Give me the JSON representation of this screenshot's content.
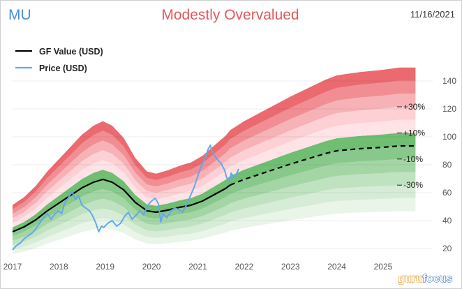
{
  "header": {
    "ticker": "MU",
    "valuation": "Modestly Overvalued",
    "date": "11/16/2021"
  },
  "colors": {
    "ticker": "#4a90d9",
    "valuation": "#e05a5a",
    "gf_value_line": "#000000",
    "price_line": "#62a8ea",
    "bands_over": [
      "#ffe3e6",
      "#fcd0d4",
      "#f7b2b7",
      "#f18e94",
      "#ea6a6f"
    ],
    "bands_under": [
      "#eaf5ea",
      "#d6ecd6",
      "#bfe2c0",
      "#a4d5a5",
      "#88c98b",
      "#6fbe72"
    ]
  },
  "chart_data": {
    "type": "line",
    "title": "Modestly Overvalued",
    "xlabel": "",
    "ylabel": "",
    "xlim": [
      2017.0,
      2025.95
    ],
    "ylim": [
      15,
      150
    ],
    "x_ticks": [
      "2017",
      "2018",
      "2019",
      "2020",
      "2021",
      "2022",
      "2023",
      "2024",
      "2025"
    ],
    "y_ticks": [
      20,
      40,
      60,
      80,
      100,
      120,
      140
    ],
    "legend": {
      "placement": "top-left",
      "entries": [
        "GF Value (USD)",
        "Price (USD)"
      ]
    },
    "band_multipliers": [
      -0.5,
      -0.4,
      -0.3,
      -0.2,
      -0.1,
      0,
      0.1,
      0.2,
      0.3,
      0.4,
      0.5,
      0.6
    ],
    "band_labels": [
      {
        "label": "+30%",
        "value": 121.5
      },
      {
        "label": "+10%",
        "value": 102.8
      },
      {
        "label": "-10%",
        "value": 84.1
      },
      {
        "label": "-30%",
        "value": 65.4
      }
    ],
    "gf_value_forecast_start": 2021.7,
    "series": [
      {
        "name": "GF Value (USD)",
        "x": [
          2017.0,
          2017.25,
          2017.5,
          2017.75,
          2018.0,
          2018.25,
          2018.5,
          2018.75,
          2018.95,
          2019.15,
          2019.4,
          2019.65,
          2019.9,
          2020.1,
          2020.35,
          2020.6,
          2020.85,
          2021.1,
          2021.35,
          2021.6,
          2021.7,
          2022.0,
          2022.5,
          2023.0,
          2023.5,
          2023.75,
          2024.0,
          2024.5,
          2025.0,
          2025.35,
          2025.7
        ],
        "values": [
          32,
          35.5,
          40.5,
          47,
          52.5,
          58,
          63.5,
          67.5,
          69.5,
          67.5,
          62,
          53,
          47,
          46,
          47.5,
          49.5,
          51,
          54,
          58.5,
          63,
          65.5,
          69.5,
          75,
          80.5,
          85.5,
          88,
          90,
          91.5,
          92.5,
          93.5,
          93.5
        ]
      },
      {
        "name": "Price (USD)",
        "x": [
          2017.0,
          2017.08,
          2017.17,
          2017.25,
          2017.33,
          2017.42,
          2017.5,
          2017.58,
          2017.67,
          2017.75,
          2017.83,
          2017.92,
          2018.0,
          2018.06,
          2018.12,
          2018.2,
          2018.28,
          2018.36,
          2018.42,
          2018.5,
          2018.58,
          2018.66,
          2018.72,
          2018.8,
          2018.86,
          2018.92,
          2018.97,
          2019.05,
          2019.15,
          2019.25,
          2019.33,
          2019.42,
          2019.5,
          2019.58,
          2019.67,
          2019.75,
          2019.83,
          2019.92,
          2020.0,
          2020.08,
          2020.15,
          2020.2,
          2020.25,
          2020.33,
          2020.42,
          2020.5,
          2020.58,
          2020.67,
          2020.75,
          2020.83,
          2020.92,
          2021.0,
          2021.06,
          2021.12,
          2021.18,
          2021.22,
          2021.27,
          2021.3,
          2021.35,
          2021.42,
          2021.5,
          2021.58,
          2021.62,
          2021.68,
          2021.72,
          2021.78,
          2021.83,
          2021.88
        ],
        "values": [
          19,
          22,
          24,
          27,
          29,
          31,
          34,
          38,
          42,
          45,
          41,
          45,
          47,
          45,
          52,
          56,
          61,
          55,
          58,
          51,
          49,
          47,
          44,
          38,
          32,
          36,
          35,
          38,
          40,
          36,
          38,
          43,
          46,
          41,
          44,
          47,
          44,
          51,
          54,
          56,
          52,
          39,
          45,
          42,
          47,
          49,
          48,
          46,
          51,
          57,
          64,
          72,
          78,
          82,
          87,
          91,
          94,
          90,
          87,
          84,
          81,
          76,
          71,
          68,
          74,
          71,
          73,
          77
        ]
      }
    ]
  },
  "watermark": {
    "part1": "guru",
    "part2": "focus"
  }
}
